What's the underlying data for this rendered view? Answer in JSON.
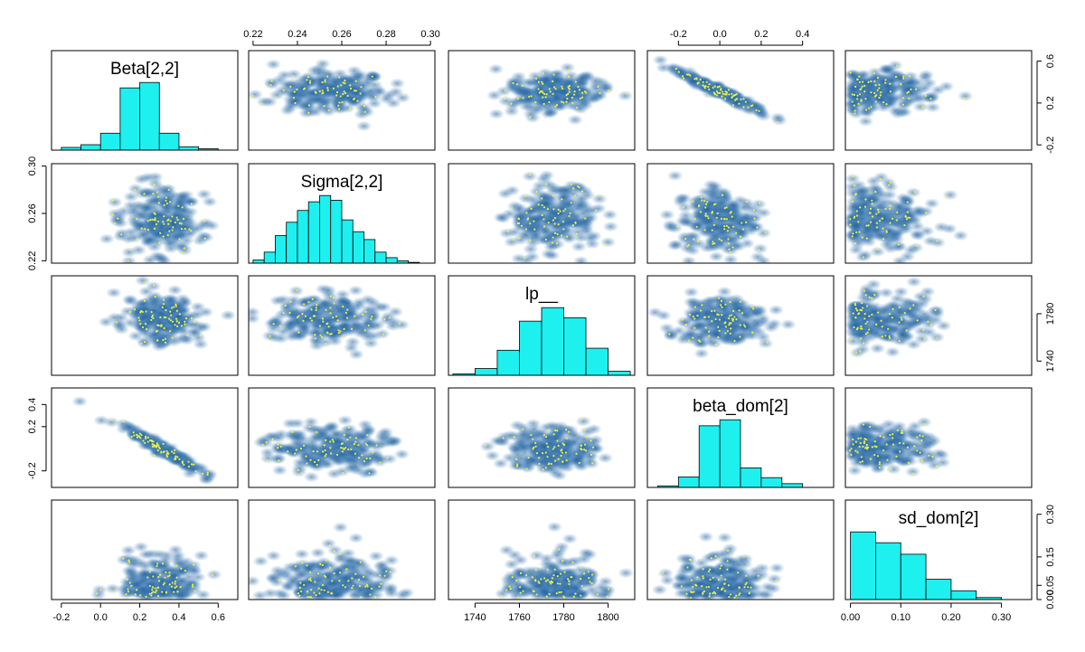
{
  "chart_data": {
    "type": "scatter",
    "subtype": "pairs-matrix",
    "variables": [
      {
        "name": "Beta[2,2]",
        "range": [
          -0.25,
          0.7
        ],
        "ticks": [
          -0.2,
          0.0,
          0.2,
          0.4,
          0.6
        ],
        "tick_labels": [
          "-0.2",
          "0.0",
          "0.2",
          "0.4",
          "0.6"
        ],
        "center": 0.31,
        "sd": 0.095,
        "histogram": {
          "bins": [
            -0.2,
            -0.1,
            0.0,
            0.1,
            0.2,
            0.3,
            0.4,
            0.5,
            0.6
          ],
          "counts": [
            4,
            8,
            25,
            92,
            100,
            25,
            5,
            2
          ]
        }
      },
      {
        "name": "Sigma[2,2]",
        "range": [
          0.218,
          0.302
        ],
        "ticks": [
          0.22,
          0.24,
          0.26,
          0.28,
          0.3
        ],
        "tick_labels": [
          "0.22",
          "0.24",
          "0.26",
          "0.28",
          "0.30"
        ],
        "center": 0.255,
        "sd": 0.013,
        "histogram": {
          "bins": [
            0.22,
            0.225,
            0.23,
            0.235,
            0.24,
            0.245,
            0.25,
            0.255,
            0.26,
            0.265,
            0.27,
            0.275,
            0.28,
            0.285,
            0.29,
            0.295
          ],
          "counts": [
            4,
            14,
            35,
            52,
            67,
            78,
            86,
            80,
            55,
            40,
            30,
            14,
            7,
            3,
            1
          ]
        }
      },
      {
        "name": "lp__",
        "range": [
          1728,
          1812
        ],
        "ticks": [
          1740,
          1760,
          1780,
          1800
        ],
        "tick_labels": [
          "1740",
          "1760",
          "1780",
          "1800"
        ],
        "center": 1775,
        "sd": 10,
        "histogram": {
          "bins": [
            1730,
            1740,
            1750,
            1760,
            1770,
            1780,
            1790,
            1800,
            1810
          ],
          "counts": [
            2,
            10,
            37,
            80,
            100,
            85,
            40,
            6
          ]
        }
      },
      {
        "name": "beta_dom[2]",
        "range": [
          -0.35,
          0.55
        ],
        "ticks": [
          -0.2,
          0.0,
          0.2,
          0.4
        ],
        "tick_labels": [
          "-0.2",
          "0.0",
          "0.2",
          "0.4"
        ],
        "center": 0.0,
        "sd": 0.1,
        "histogram": {
          "bins": [
            -0.3,
            -0.2,
            -0.1,
            0.0,
            0.1,
            0.2,
            0.3,
            0.4,
            0.5
          ],
          "counts": [
            2,
            14,
            82,
            90,
            26,
            13,
            5,
            0
          ]
        }
      },
      {
        "name": "sd_dom[2]",
        "range": [
          -0.01,
          0.36
        ],
        "ticks": [
          0.0,
          0.1,
          0.2,
          0.3
        ],
        "tick_labels": [
          "0.00",
          "0.10",
          "0.20",
          "0.30"
        ],
        "center": 0.05,
        "sd": 0.08,
        "histogram": {
          "bins": [
            0.0,
            0.05,
            0.1,
            0.15,
            0.2,
            0.25,
            0.3
          ],
          "counts": [
            100,
            84,
            67,
            30,
            13,
            3
          ]
        }
      }
    ],
    "right_axis_ticks": {
      "Beta[2,2]": {
        "ticks": [
          -0.2,
          0.2,
          0.6
        ],
        "tick_labels": [
          "-0.2",
          "0.2",
          "0.6"
        ]
      },
      "lp__": {
        "ticks": [
          1740,
          1780
        ],
        "tick_labels": [
          "1740",
          "1780"
        ]
      },
      "sd_dom[2]": {
        "ticks": [
          0.0,
          0.05,
          0.15,
          0.3
        ],
        "tick_labels": [
          "0.00",
          "0.05",
          "0.15",
          "0.30"
        ]
      }
    },
    "left_axis_ticks": {
      "Sigma[2,2]": {
        "ticks": [
          0.22,
          0.26,
          0.3
        ],
        "tick_labels": [
          "0.22",
          "0.26",
          "0.30"
        ]
      },
      "beta_dom[2]": {
        "ticks": [
          -0.2,
          0.2,
          0.4
        ],
        "tick_labels": [
          "-0.2",
          "0.2",
          "0.4"
        ]
      }
    },
    "correlations": {
      "Beta[2,2]|beta_dom[2]": -0.97,
      "beta_dom[2]|sd_dom[2]": 0.3
    },
    "colors": {
      "histogram_fill": "#1ef0f0",
      "density_dark": "#08306b",
      "density_light": "#a6c8e6",
      "outlier_points": "#e8f04a"
    },
    "grid": false,
    "legend": "none"
  }
}
